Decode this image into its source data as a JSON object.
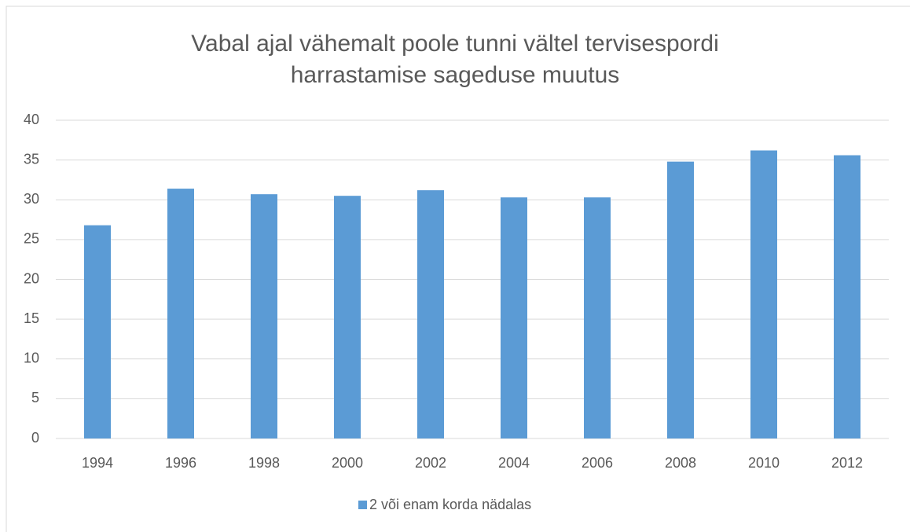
{
  "chart_data": {
    "type": "bar",
    "title": "Vabal ajal vähemalt poole tunni vältel tervisespordi harrastamise sageduse muutus",
    "categories": [
      "1994",
      "1996",
      "1998",
      "2000",
      "2002",
      "2004",
      "2006",
      "2008",
      "2010",
      "2012"
    ],
    "series": [
      {
        "name": "2 või enam korda nädalas",
        "color": "#5b9bd5",
        "values": [
          26.8,
          31.4,
          30.7,
          30.5,
          31.2,
          30.3,
          30.3,
          34.8,
          36.2,
          35.6
        ]
      }
    ],
    "ylim": [
      0,
      40
    ],
    "yticks": [
      0,
      5,
      10,
      15,
      20,
      25,
      30,
      35,
      40
    ],
    "grid": true,
    "legend": "bottom"
  }
}
